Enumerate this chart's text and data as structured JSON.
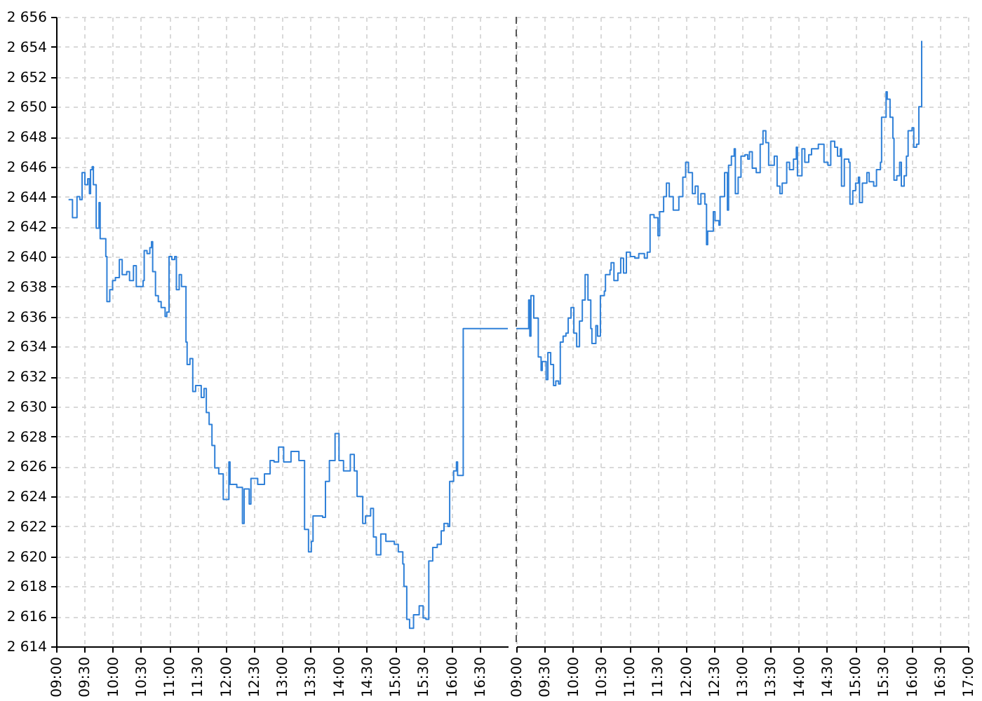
{
  "chart_data": [
    {
      "type": "step",
      "series": [
        {
          "color": "#2f80d8",
          "x": [
            9.22,
            9.29,
            9.37,
            9.42,
            9.46,
            9.51,
            9.56,
            9.59,
            9.61,
            9.64,
            9.66,
            9.71,
            9.76,
            9.78,
            9.88,
            9.9,
            9.95,
            10.0,
            10.05,
            10.12,
            10.17,
            10.25,
            10.3,
            10.37,
            10.42,
            10.54,
            10.56,
            10.61,
            10.66,
            10.69,
            10.71,
            10.76,
            10.81,
            10.86,
            10.93,
            10.96,
            11.0,
            11.05,
            11.1,
            11.13,
            11.18,
            11.22,
            11.3,
            11.32,
            11.37,
            11.42,
            11.47,
            11.57,
            11.62,
            11.66,
            11.71,
            11.76,
            11.81,
            11.88,
            11.96,
            12.06,
            12.08,
            12.2,
            12.3,
            12.33,
            12.42,
            12.45,
            12.57,
            12.69,
            12.79,
            12.86,
            12.94,
            13.03,
            13.16,
            13.3,
            13.4,
            13.47,
            13.52,
            13.55,
            13.72,
            13.77,
            13.84,
            13.94,
            14.01,
            14.09,
            14.21,
            14.28,
            14.33,
            14.43,
            14.48,
            14.57,
            14.62,
            14.67,
            14.75,
            14.84,
            14.99,
            15.06,
            15.14,
            15.16,
            15.21,
            15.26,
            15.33,
            15.43,
            15.5,
            15.55,
            15.6,
            15.67,
            15.75,
            15.82,
            15.87,
            15.94,
            15.97,
            16.04,
            16.09,
            16.11,
            16.21,
            17
          ],
          "values": [
            2643.8,
            2642.6,
            2644.0,
            2643.8,
            2645.6,
            2644.8,
            2645.2,
            2644.2,
            2645.8,
            2646.0,
            2644.8,
            2641.9,
            2643.6,
            2641.2,
            2640.0,
            2637.0,
            2637.8,
            2638.4,
            2638.6,
            2639.8,
            2638.8,
            2639.0,
            2638.4,
            2639.4,
            2638.0,
            2638.4,
            2640.4,
            2640.2,
            2640.6,
            2641.0,
            2639.0,
            2637.4,
            2637.0,
            2636.6,
            2636.0,
            2636.3,
            2640.0,
            2639.8,
            2640.0,
            2637.8,
            2638.8,
            2638.0,
            2634.3,
            2632.8,
            2633.2,
            2631.0,
            2631.4,
            2630.6,
            2631.2,
            2629.6,
            2628.8,
            2627.4,
            2625.9,
            2625.5,
            2623.8,
            2626.3,
            2624.8,
            2624.6,
            2622.2,
            2624.5,
            2623.5,
            2625.2,
            2624.8,
            2625.5,
            2626.4,
            2626.3,
            2627.3,
            2626.3,
            2627.0,
            2626.4,
            2621.8,
            2620.3,
            2621.0,
            2622.7,
            2622.6,
            2625.0,
            2626.4,
            2628.2,
            2626.4,
            2625.7,
            2626.8,
            2625.7,
            2624.0,
            2622.2,
            2622.7,
            2623.2,
            2621.3,
            2620.1,
            2621.5,
            2621.0,
            2620.8,
            2620.3,
            2619.5,
            2618.0,
            2615.8,
            2615.2,
            2616.1,
            2616.7,
            2615.9,
            2615.8,
            2619.7,
            2620.6,
            2620.8,
            2621.7,
            2622.2,
            2622.0,
            2625.0,
            2625.7,
            2626.3,
            2625.4,
            2635.2,
            2635.2
          ]
        }
      ],
      "xlim": [
        9,
        17
      ],
      "xticks": [
        {
          "value": 9,
          "label": "09:00"
        },
        {
          "value": 9.5,
          "label": "09:30"
        },
        {
          "value": 10,
          "label": "10:00"
        },
        {
          "value": 10.5,
          "label": "10:30"
        },
        {
          "value": 11,
          "label": "11:00"
        },
        {
          "value": 11.5,
          "label": "11:30"
        },
        {
          "value": 12,
          "label": "12:00"
        },
        {
          "value": 12.5,
          "label": "12:30"
        },
        {
          "value": 13,
          "label": "13:00"
        },
        {
          "value": 13.5,
          "label": "13:30"
        },
        {
          "value": 14,
          "label": "14:00"
        },
        {
          "value": 14.5,
          "label": "14:30"
        },
        {
          "value": 15,
          "label": "15:00"
        },
        {
          "value": 15.5,
          "label": "15:30"
        },
        {
          "value": 16,
          "label": "16:00"
        },
        {
          "value": 16.5,
          "label": "16:30"
        }
      ],
      "ylim": [
        2614,
        2656
      ],
      "yticks": [
        {
          "value": 2614,
          "label": "2 614"
        },
        {
          "value": 2616,
          "label": "2 616"
        },
        {
          "value": 2618,
          "label": "2 618"
        },
        {
          "value": 2620,
          "label": "2 620"
        },
        {
          "value": 2622,
          "label": "2 622"
        },
        {
          "value": 2624,
          "label": "2 624"
        },
        {
          "value": 2626,
          "label": "2 626"
        },
        {
          "value": 2628,
          "label": "2 628"
        },
        {
          "value": 2630,
          "label": "2 630"
        },
        {
          "value": 2632,
          "label": "2 632"
        },
        {
          "value": 2634,
          "label": "2 634"
        },
        {
          "value": 2636,
          "label": "2 636"
        },
        {
          "value": 2638,
          "label": "2 638"
        },
        {
          "value": 2640,
          "label": "2 640"
        },
        {
          "value": 2642,
          "label": "2 642"
        },
        {
          "value": 2644,
          "label": "2 644"
        },
        {
          "value": 2646,
          "label": "2 646"
        },
        {
          "value": 2648,
          "label": "2 648"
        },
        {
          "value": 2650,
          "label": "2 650"
        },
        {
          "value": 2652,
          "label": "2 652"
        },
        {
          "value": 2654,
          "label": "2 654"
        },
        {
          "value": 2656,
          "label": "2 656"
        }
      ],
      "grid": true
    },
    {
      "type": "step",
      "series": [
        {
          "color": "#2f80d8",
          "x": [
            9.0,
            9.22,
            9.24,
            9.26,
            9.31,
            9.39,
            9.44,
            9.46,
            9.53,
            9.56,
            9.61,
            9.66,
            9.7,
            9.75,
            9.78,
            9.83,
            9.88,
            9.92,
            9.97,
            10.02,
            10.07,
            10.12,
            10.17,
            10.22,
            10.27,
            10.32,
            10.34,
            10.41,
            10.44,
            10.49,
            10.56,
            10.58,
            10.66,
            10.68,
            10.73,
            10.8,
            10.85,
            10.9,
            10.95,
            11.02,
            11.1,
            11.17,
            11.27,
            11.32,
            11.37,
            11.44,
            11.51,
            11.54,
            11.61,
            11.66,
            11.71,
            11.78,
            11.88,
            11.95,
            12.0,
            12.05,
            12.12,
            12.17,
            12.22,
            12.27,
            12.34,
            12.37,
            12.39,
            12.49,
            12.52,
            12.59,
            12.61,
            12.69,
            12.74,
            12.76,
            12.81,
            12.86,
            12.88,
            12.93,
            12.98,
            13.05,
            13.1,
            13.13,
            13.18,
            13.25,
            13.32,
            13.37,
            13.42,
            13.47,
            13.57,
            13.62,
            13.67,
            13.71,
            13.79,
            13.84,
            13.91,
            13.96,
            13.98,
            14.06,
            14.11,
            14.18,
            14.23,
            14.35,
            14.45,
            14.52,
            14.57,
            14.64,
            14.69,
            14.74,
            14.76,
            14.81,
            14.89,
            14.91,
            14.96,
            15.01,
            15.06,
            15.08,
            15.13,
            15.21,
            15.25,
            15.33,
            15.38,
            15.45,
            15.47,
            15.55,
            15.57,
            15.62,
            15.67,
            15.69,
            15.74,
            15.79,
            15.82,
            15.87,
            15.91,
            15.94,
            16.01,
            16.04,
            16.09,
            16.13,
            16.18
          ],
          "values": [
            2635.2,
            2637.1,
            2634.7,
            2637.4,
            2635.9,
            2633.3,
            2632.4,
            2633.0,
            2631.8,
            2633.6,
            2632.8,
            2631.4,
            2631.7,
            2631.5,
            2634.3,
            2634.7,
            2634.9,
            2635.9,
            2636.6,
            2634.9,
            2634.0,
            2635.7,
            2637.1,
            2638.8,
            2637.1,
            2635.2,
            2634.2,
            2635.4,
            2634.7,
            2637.4,
            2637.7,
            2638.8,
            2639.1,
            2639.6,
            2638.4,
            2638.9,
            2639.9,
            2638.9,
            2640.3,
            2640.0,
            2639.9,
            2640.2,
            2639.9,
            2640.3,
            2642.8,
            2642.6,
            2641.4,
            2643.0,
            2644.0,
            2644.9,
            2644.0,
            2643.1,
            2644.0,
            2645.3,
            2646.3,
            2645.6,
            2644.2,
            2644.7,
            2643.5,
            2644.2,
            2643.5,
            2640.8,
            2641.7,
            2643.0,
            2642.4,
            2642.1,
            2644.0,
            2645.6,
            2643.1,
            2646.1,
            2646.7,
            2647.2,
            2644.2,
            2645.3,
            2646.7,
            2646.8,
            2646.5,
            2647.0,
            2645.9,
            2645.6,
            2647.5,
            2648.4,
            2647.6,
            2646.1,
            2646.7,
            2644.7,
            2644.2,
            2644.9,
            2646.3,
            2645.8,
            2646.5,
            2647.3,
            2645.4,
            2647.2,
            2646.3,
            2646.8,
            2647.2,
            2647.5,
            2646.3,
            2646.1,
            2647.7,
            2647.3,
            2646.7,
            2647.2,
            2644.7,
            2646.5,
            2646.3,
            2643.5,
            2644.4,
            2644.9,
            2645.3,
            2643.6,
            2644.9,
            2645.6,
            2645.0,
            2644.7,
            2645.8,
            2646.3,
            2649.3,
            2651.0,
            2650.5,
            2649.3,
            2647.9,
            2645.1,
            2645.4,
            2646.3,
            2644.7,
            2645.4,
            2646.7,
            2648.4,
            2648.6,
            2647.3,
            2647.5,
            2650.0,
            2654.4
          ]
        }
      ],
      "xlim": [
        9,
        17
      ],
      "xticks": [
        {
          "value": 9,
          "label": "09:00"
        },
        {
          "value": 9.5,
          "label": "09:30"
        },
        {
          "value": 10,
          "label": "10:00"
        },
        {
          "value": 10.5,
          "label": "10:30"
        },
        {
          "value": 11,
          "label": "11:00"
        },
        {
          "value": 11.5,
          "label": "11:30"
        },
        {
          "value": 12,
          "label": "12:00"
        },
        {
          "value": 12.5,
          "label": "12:30"
        },
        {
          "value": 13,
          "label": "13:00"
        },
        {
          "value": 13.5,
          "label": "13:30"
        },
        {
          "value": 14,
          "label": "14:00"
        },
        {
          "value": 14.5,
          "label": "14:30"
        },
        {
          "value": 15,
          "label": "15:00"
        },
        {
          "value": 15.5,
          "label": "15:30"
        },
        {
          "value": 16,
          "label": "16:00"
        },
        {
          "value": 16.5,
          "label": "16:30"
        },
        {
          "value": 17,
          "label": "17:00"
        }
      ],
      "ylim": [
        2614,
        2656
      ],
      "yticks": [
        2614,
        2616,
        2618,
        2620,
        2622,
        2624,
        2626,
        2628,
        2630,
        2632,
        2634,
        2636,
        2638,
        2640,
        2642,
        2644,
        2646,
        2648,
        2650,
        2652,
        2654,
        2656
      ],
      "tick_labels": "x",
      "ref_lines": [
        {
          "axis": "x",
          "value": 9,
          "color": "#555555",
          "line_style": "dashed"
        }
      ],
      "grid": true
    }
  ]
}
